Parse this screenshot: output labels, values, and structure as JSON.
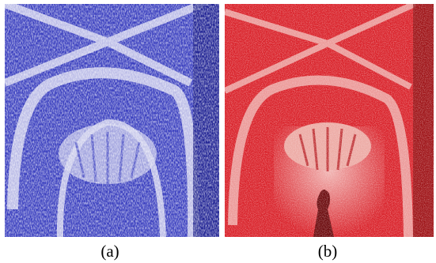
{
  "panels": [
    {
      "id": "a",
      "caption": "(a)",
      "base_color": "#3a3fbf",
      "light_color": "#dcdcf0",
      "dark_color": "#1a1d8a"
    },
    {
      "id": "b",
      "caption": "(b)",
      "base_color": "#d9222a",
      "light_color": "#f3c9c6",
      "dark_color": "#8a0f12"
    }
  ]
}
